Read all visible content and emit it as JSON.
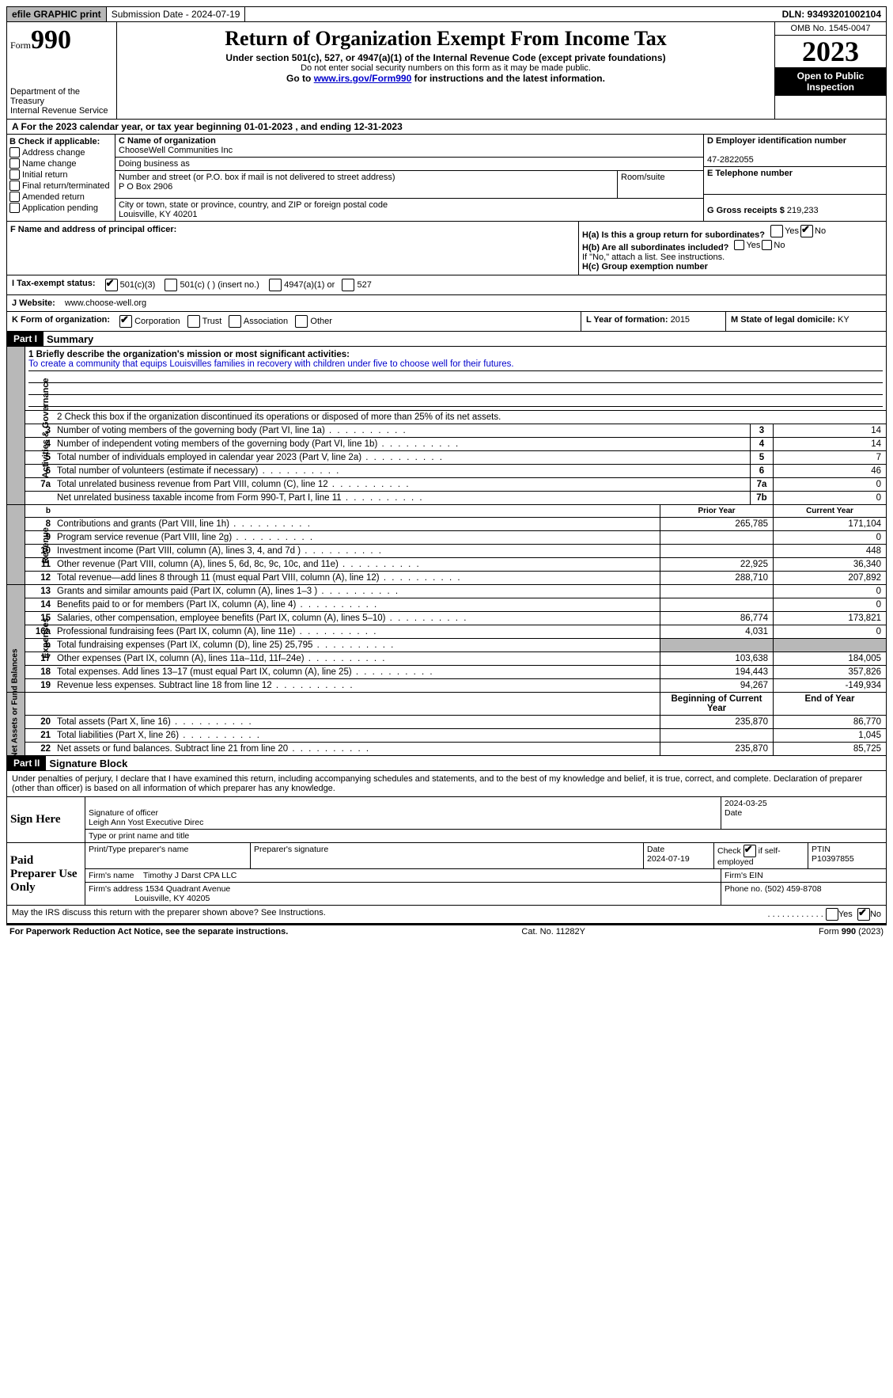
{
  "topbar": {
    "efile": "efile GRAPHIC print",
    "submission": "Submission Date - 2024-07-19",
    "dln": "DLN: 93493201002104"
  },
  "header": {
    "form_prefix": "Form",
    "form_number": "990",
    "dept1": "Department of the Treasury",
    "dept2": "Internal Revenue Service",
    "title": "Return of Organization Exempt From Income Tax",
    "sub": "Under section 501(c), 527, or 4947(a)(1) of the Internal Revenue Code (except private foundations)",
    "note": "Do not enter social security numbers on this form as it may be made public.",
    "goto_pre": "Go to ",
    "goto_link": "www.irs.gov/Form990",
    "goto_post": " for instructions and the latest information.",
    "omb": "OMB No. 1545-0047",
    "year": "2023",
    "open": "Open to Public Inspection"
  },
  "taxyear": "A For the 2023 calendar year, or tax year beginning 01-01-2023   , and ending 12-31-2023",
  "boxB": {
    "title": "B Check if applicable:",
    "items": [
      "Address change",
      "Name change",
      "Initial return",
      "Final return/terminated",
      "Amended return",
      "Application pending"
    ]
  },
  "boxC": {
    "name_label": "C Name of organization",
    "name": "ChooseWell Communities Inc",
    "dba_label": "Doing business as",
    "dba": "",
    "addr_label": "Number and street (or P.O. box if mail is not delivered to street address)",
    "addr": "P O Box 2906",
    "room_label": "Room/suite",
    "city_label": "City or town, state or province, country, and ZIP or foreign postal code",
    "city": "Louisville, KY  40201"
  },
  "boxD": {
    "label": "D Employer identification number",
    "val": "47-2822055"
  },
  "boxE": {
    "label": "E Telephone number",
    "val": ""
  },
  "boxG": {
    "label": "G Gross receipts $",
    "val": "219,233"
  },
  "boxF": {
    "label": "F  Name and address of principal officer:",
    "val": ""
  },
  "boxH": {
    "a": "H(a)  Is this a group return for subordinates?",
    "b": "H(b)  Are all subordinates included?",
    "note": "If \"No,\" attach a list. See instructions.",
    "c": "H(c)  Group exemption number"
  },
  "boxI": {
    "label": "I   Tax-exempt status:",
    "opts": [
      "501(c)(3)",
      "501(c) (  ) (insert no.)",
      "4947(a)(1) or",
      "527"
    ]
  },
  "boxJ": {
    "label": "J   Website:",
    "val": "www.choose-well.org"
  },
  "boxK": {
    "label": "K Form of organization:",
    "opts": [
      "Corporation",
      "Trust",
      "Association",
      "Other"
    ]
  },
  "boxL": {
    "label": "L Year of formation:",
    "val": "2015"
  },
  "boxM": {
    "label": "M State of legal domicile:",
    "val": "KY"
  },
  "part1": {
    "header": "Part I",
    "title": "Summary",
    "line1_label": "1   Briefly describe the organization's mission or most significant activities:",
    "mission": "To create a community that equips Louisvilles families in recovery with children under five to choose well for their futures.",
    "line2": "2    Check this box       if the organization discontinued its operations or disposed of more than 25% of its net assets.",
    "vlabels": {
      "gov": "Activities & Governance",
      "rev": "Revenue",
      "exp": "Expenses",
      "net": "Net Assets or Fund Balances"
    },
    "col_prior": "Prior Year",
    "col_current": "Current Year",
    "col_begin": "Beginning of Current Year",
    "col_end": "End of Year",
    "gov_lines": [
      {
        "n": "3",
        "d": "Number of voting members of the governing body (Part VI, line 1a)",
        "box": "3",
        "v": "14"
      },
      {
        "n": "4",
        "d": "Number of independent voting members of the governing body (Part VI, line 1b)",
        "box": "4",
        "v": "14"
      },
      {
        "n": "5",
        "d": "Total number of individuals employed in calendar year 2023 (Part V, line 2a)",
        "box": "5",
        "v": "7"
      },
      {
        "n": "6",
        "d": "Total number of volunteers (estimate if necessary)",
        "box": "6",
        "v": "46"
      },
      {
        "n": "7a",
        "d": "Total unrelated business revenue from Part VIII, column (C), line 12",
        "box": "7a",
        "v": "0"
      },
      {
        "n": "",
        "d": "Net unrelated business taxable income from Form 990-T, Part I, line 11",
        "box": "7b",
        "v": "0"
      }
    ],
    "rev_lines": [
      {
        "n": "8",
        "d": "Contributions and grants (Part VIII, line 1h)",
        "p": "265,785",
        "c": "171,104"
      },
      {
        "n": "9",
        "d": "Program service revenue (Part VIII, line 2g)",
        "p": "",
        "c": "0"
      },
      {
        "n": "10",
        "d": "Investment income (Part VIII, column (A), lines 3, 4, and 7d )",
        "p": "",
        "c": "448"
      },
      {
        "n": "11",
        "d": "Other revenue (Part VIII, column (A), lines 5, 6d, 8c, 9c, 10c, and 11e)",
        "p": "22,925",
        "c": "36,340"
      },
      {
        "n": "12",
        "d": "Total revenue—add lines 8 through 11 (must equal Part VIII, column (A), line 12)",
        "p": "288,710",
        "c": "207,892"
      }
    ],
    "exp_lines": [
      {
        "n": "13",
        "d": "Grants and similar amounts paid (Part IX, column (A), lines 1–3 )",
        "p": "",
        "c": "0"
      },
      {
        "n": "14",
        "d": "Benefits paid to or for members (Part IX, column (A), line 4)",
        "p": "",
        "c": "0"
      },
      {
        "n": "15",
        "d": "Salaries, other compensation, employee benefits (Part IX, column (A), lines 5–10)",
        "p": "86,774",
        "c": "173,821"
      },
      {
        "n": "16a",
        "d": "Professional fundraising fees (Part IX, column (A), line 11e)",
        "p": "4,031",
        "c": "0"
      },
      {
        "n": "b",
        "d": "Total fundraising expenses (Part IX, column (D), line 25) 25,795",
        "p": "shade",
        "c": "shade"
      },
      {
        "n": "17",
        "d": "Other expenses (Part IX, column (A), lines 11a–11d, 11f–24e)",
        "p": "103,638",
        "c": "184,005"
      },
      {
        "n": "18",
        "d": "Total expenses. Add lines 13–17 (must equal Part IX, column (A), line 25)",
        "p": "194,443",
        "c": "357,826"
      },
      {
        "n": "19",
        "d": "Revenue less expenses. Subtract line 18 from line 12",
        "p": "94,267",
        "c": "-149,934"
      }
    ],
    "net_lines": [
      {
        "n": "20",
        "d": "Total assets (Part X, line 16)",
        "p": "235,870",
        "c": "86,770"
      },
      {
        "n": "21",
        "d": "Total liabilities (Part X, line 26)",
        "p": "",
        "c": "1,045"
      },
      {
        "n": "22",
        "d": "Net assets or fund balances. Subtract line 21 from line 20",
        "p": "235,870",
        "c": "85,725"
      }
    ]
  },
  "part2": {
    "header": "Part II",
    "title": "Signature Block",
    "decl": "Under penalties of perjury, I declare that I have examined this return, including accompanying schedules and statements, and to the best of my knowledge and belief, it is true, correct, and complete. Declaration of preparer (other than officer) is based on all information of which preparer has any knowledge.",
    "sign_here": "Sign Here",
    "sig_officer": "Signature of officer",
    "sig_name": "Leigh Ann Yost  Executive Direc",
    "sig_type": "Type or print name and title",
    "sig_date_label": "Date",
    "sig_date": "2024-03-25",
    "paid": "Paid Preparer Use Only",
    "prep_name_label": "Print/Type preparer's name",
    "prep_sig_label": "Preparer's signature",
    "prep_date_label": "Date",
    "prep_date": "2024-07-19",
    "prep_check": "Check         if self-employed",
    "ptin_label": "PTIN",
    "ptin": "P10397855",
    "firm_name_label": "Firm's name",
    "firm_name": "Timothy J Darst CPA LLC",
    "firm_ein_label": "Firm's EIN",
    "firm_addr_label": "Firm's address",
    "firm_addr1": "1534 Quadrant Avenue",
    "firm_addr2": "Louisville, KY  40205",
    "firm_phone_label": "Phone no.",
    "firm_phone": "(502) 459-8708",
    "discuss": "May the IRS discuss this return with the preparer shown above? See Instructions.",
    "yes": "Yes",
    "no": "No"
  },
  "footer": {
    "left": "For Paperwork Reduction Act Notice, see the separate instructions.",
    "mid": "Cat. No. 11282Y",
    "right_pre": "Form ",
    "right_b": "990",
    "right_post": " (2023)"
  }
}
